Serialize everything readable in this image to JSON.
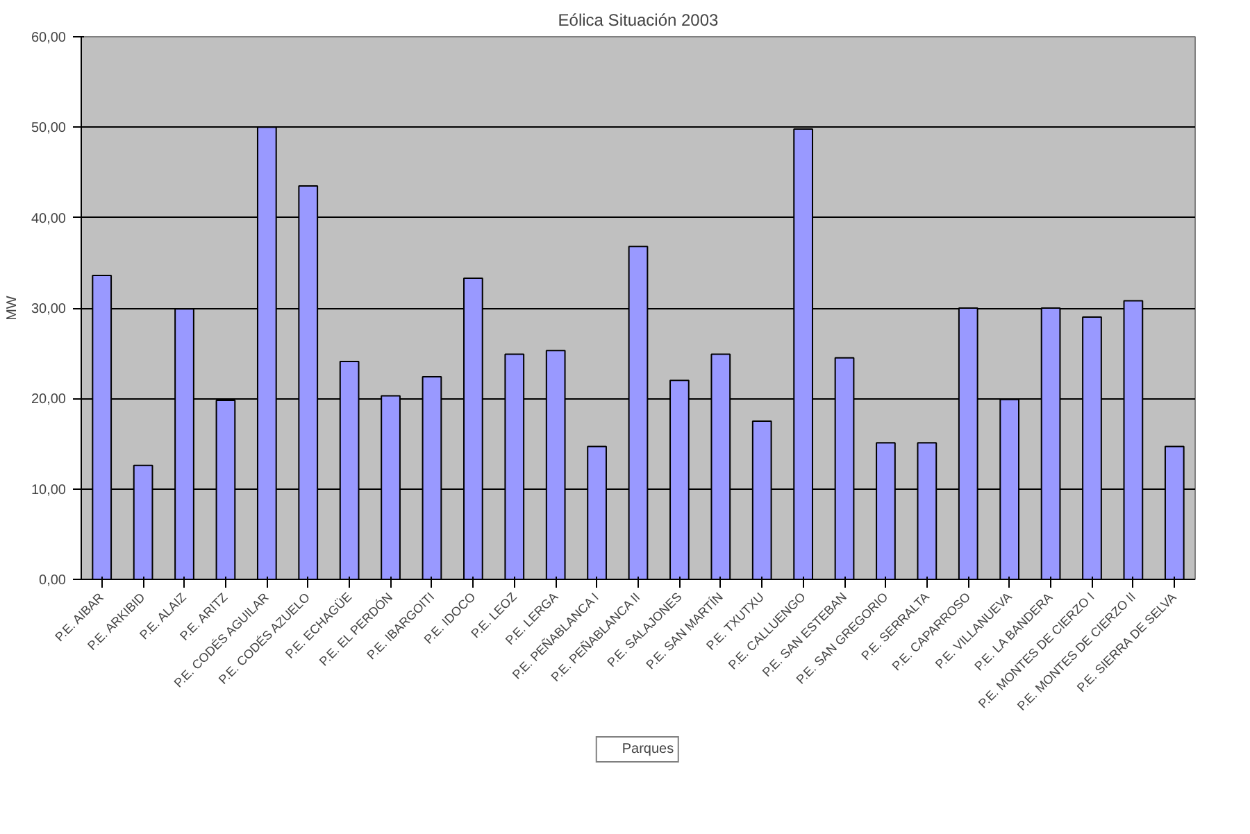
{
  "chart_data": {
    "type": "bar",
    "title": "Eólica Situación 2003",
    "ylabel": "MW",
    "categories": [
      "P.E. AIBAR",
      "P.E. ARKIBID",
      "P.E. ALAIZ",
      "P.E. ARITZ",
      "P.E. CODÉS AGUILAR",
      "P.E. CODÉS AZUELO",
      "P.E. ECHAGÜE",
      "P.E. EL PERDÓN",
      "P.E. IBARGOITI",
      "P.E. IDOCO",
      "P.E. LEOZ",
      "P.E. LERGA",
      "P.E. PEÑABLANCA I",
      "P.E. PEÑABLANCA II",
      "P.E. SALAJONES",
      "P.E. SAN MARTÍN",
      "P.E. TXUTXU",
      "P.E. CALLUENGO",
      "P.E. SAN ESTEBAN",
      "P.E. SAN GREGORIO",
      "P.E. SERRALTA",
      "P.E. CAPARROSO",
      "P.E. VILLANUEVA",
      "P.E. LA BANDERA",
      "P.E. MONTES DE CIERZO I",
      "P.E. MONTES DE CIERZO II",
      "P.E. SIERRA DE SELVA"
    ],
    "series": [
      {
        "name": "Parques",
        "color": "#9999ff",
        "values": [
          33.6,
          12.6,
          29.9,
          19.8,
          50.0,
          43.5,
          24.1,
          20.3,
          22.4,
          33.3,
          24.9,
          25.3,
          14.7,
          36.8,
          22.0,
          24.9,
          17.5,
          49.8,
          24.5,
          15.1,
          15.1,
          30.0,
          19.9,
          30.0,
          29.0,
          30.8,
          14.7
        ]
      }
    ],
    "ylim": [
      0,
      60
    ],
    "yticks": [
      {
        "value": 0,
        "label": "0,00"
      },
      {
        "value": 10,
        "label": "10,00"
      },
      {
        "value": 20,
        "label": "20,00"
      },
      {
        "value": 30,
        "label": "30,00"
      },
      {
        "value": 40,
        "label": "40,00"
      },
      {
        "value": 50,
        "label": "50,00"
      },
      {
        "value": 60,
        "label": "60,00"
      }
    ],
    "grid": "y",
    "legend": "bottom"
  }
}
